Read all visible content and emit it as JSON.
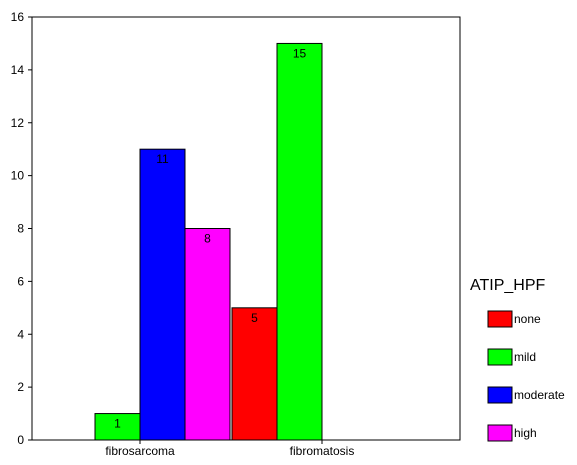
{
  "chart_data": {
    "type": "bar",
    "title": "",
    "xlabel": "",
    "ylabel": "",
    "categories": [
      "fibrosarcoma",
      "fibromatosis"
    ],
    "series": [
      {
        "name": "none",
        "color": "#ff0000",
        "values": [
          0,
          5
        ]
      },
      {
        "name": "mild",
        "color": "#00ff00",
        "values": [
          1,
          15
        ]
      },
      {
        "name": "moderate",
        "color": "#0000ff",
        "values": [
          11,
          0
        ]
      },
      {
        "name": "high",
        "color": "#ff00ff",
        "values": [
          8,
          0
        ]
      }
    ],
    "data_labels": [
      [
        null,
        "5"
      ],
      [
        "1",
        "15"
      ],
      [
        "11",
        null
      ],
      [
        "8",
        null
      ]
    ],
    "ylim": [
      0,
      16
    ],
    "yticks": [
      "0",
      "2",
      "4",
      "6",
      "8",
      "10",
      "12",
      "14",
      "16"
    ],
    "grid": false,
    "legend": {
      "title": "ATIP_HPF",
      "position": "right"
    }
  }
}
